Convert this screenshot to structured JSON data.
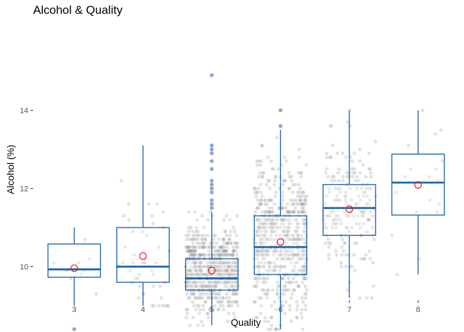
{
  "chart_data": {
    "type": "box",
    "title": "Alcohol & Quality",
    "xlabel": "Quality",
    "ylabel": "Alcohol (%)",
    "categories": [
      "3",
      "4",
      "5",
      "6",
      "7",
      "8"
    ],
    "y_ticks": [
      "10",
      "12",
      "14"
    ],
    "ylim": [
      8.3,
      15.1
    ],
    "grid": false,
    "colors": {
      "box": "#2166ac",
      "mean": "#e41a1c",
      "jitter": "#999999",
      "outlier": "#2166ac"
    },
    "boxes": [
      {
        "category": "3",
        "q1": 9.73,
        "median": 9.93,
        "q3": 10.58,
        "whisker_low": 9.0,
        "whisker_high": 11.0,
        "mean": 9.96,
        "n": 10,
        "outliers": [
          8.4
        ]
      },
      {
        "category": "4",
        "q1": 9.6,
        "median": 10.0,
        "q3": 11.0,
        "whisker_low": 9.0,
        "whisker_high": 13.1,
        "mean": 10.27,
        "n": 53,
        "outliers": []
      },
      {
        "category": "5",
        "q1": 9.4,
        "median": 9.7,
        "q3": 10.2,
        "whisker_low": 8.5,
        "whisker_high": 11.4,
        "mean": 9.9,
        "n": 681,
        "outliers": [
          11.5,
          11.6,
          11.7,
          11.9,
          12.0,
          12.1,
          12.2,
          12.5,
          12.7,
          12.9,
          13.0,
          13.1,
          14.9
        ]
      },
      {
        "category": "6",
        "q1": 9.8,
        "median": 10.5,
        "q3": 11.3,
        "whisker_low": 8.4,
        "whisker_high": 13.5,
        "mean": 10.63,
        "n": 638,
        "outliers": [
          13.6,
          14.0
        ]
      },
      {
        "category": "7",
        "q1": 10.8,
        "median": 11.5,
        "q3": 12.1,
        "whisker_low": 9.2,
        "whisker_high": 14.0,
        "mean": 11.47,
        "n": 199,
        "outliers": []
      },
      {
        "category": "8",
        "q1": 11.32,
        "median": 12.15,
        "q3": 12.88,
        "whisker_low": 9.8,
        "whisker_high": 14.0,
        "mean": 12.09,
        "n": 18,
        "outliers": []
      }
    ]
  }
}
